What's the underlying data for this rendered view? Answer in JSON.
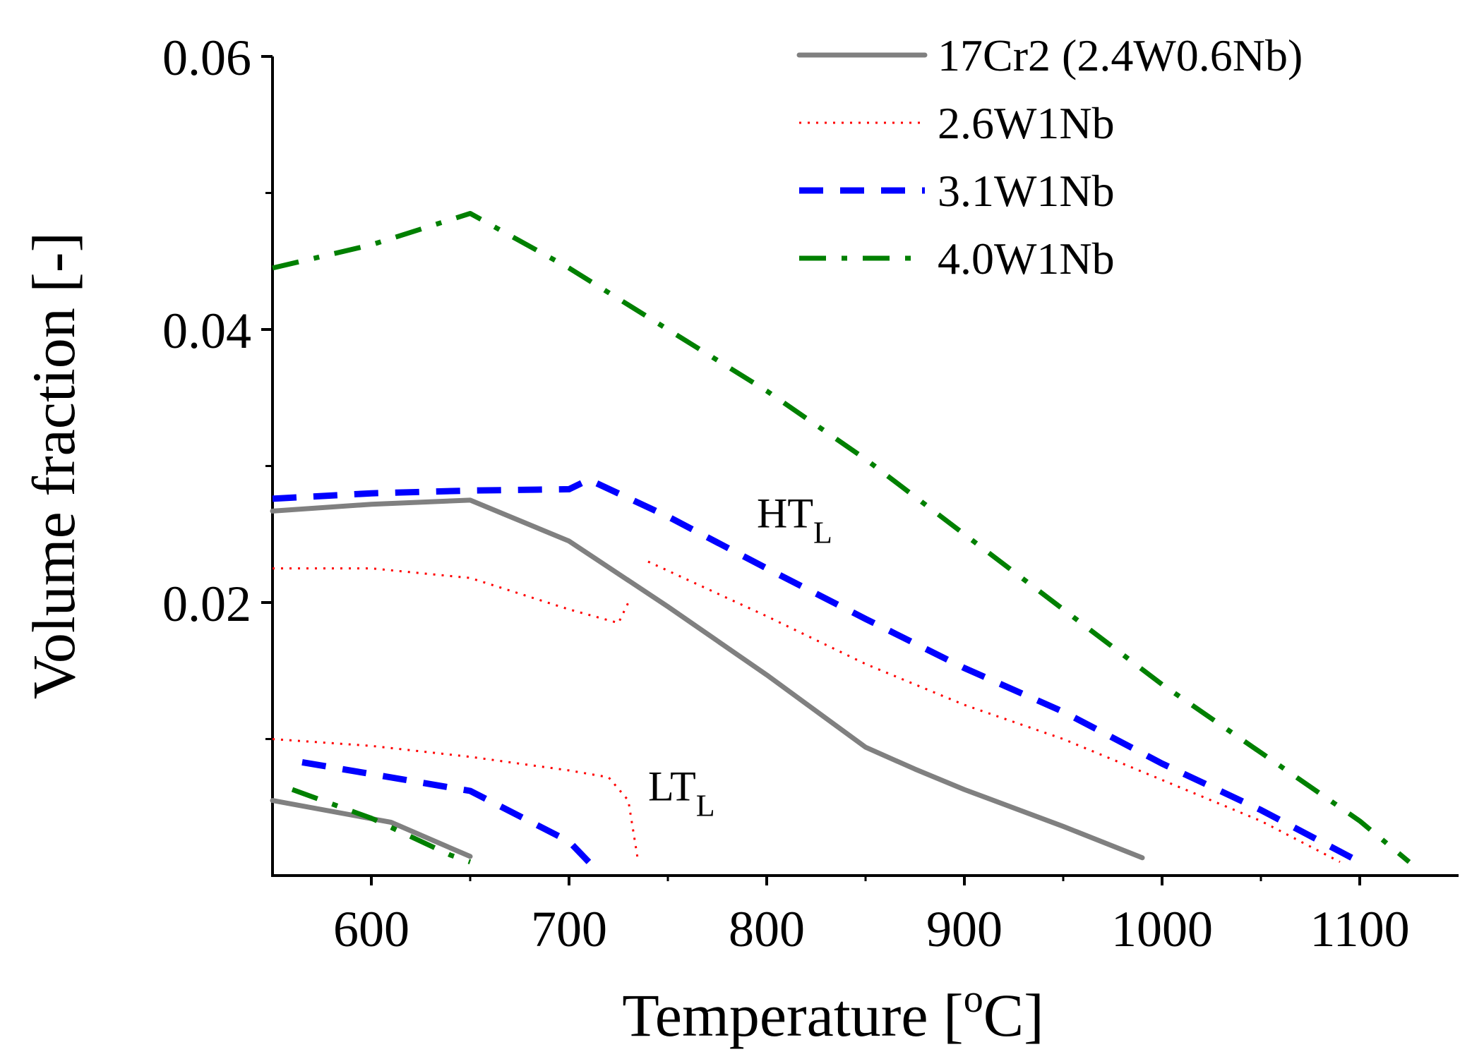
{
  "chart_data": {
    "type": "line",
    "xlabel": "Temperature [°C]",
    "xlabel_parts": {
      "pre": "Temperature [",
      "sup": "o",
      "post": "C]"
    },
    "ylabel": "Volume fraction [-]",
    "xlim": [
      550,
      1150
    ],
    "ylim": [
      0,
      0.06
    ],
    "x_ticks": [
      600,
      700,
      800,
      900,
      1000,
      1100
    ],
    "x_tick_labels": [
      "600",
      "700",
      "800",
      "900",
      "1000",
      "1100"
    ],
    "y_ticks": [
      0.02,
      0.04,
      0.06
    ],
    "y_tick_labels": [
      "0.02",
      "0.04",
      "0.06"
    ],
    "y_minor_ticks": [
      0.01,
      0.03,
      0.05
    ],
    "x_minor_ticks": [
      650,
      750,
      850,
      950,
      1050
    ],
    "grid": false,
    "legend_position": "top-right",
    "series": [
      {
        "name": "17Cr2 (2.4W0.6Nb)",
        "color": "#808080",
        "style": "solid",
        "segments": [
          {
            "group": "HT",
            "x": [
              550,
              600,
              650,
              700,
              750,
              800,
              850,
              875,
              900,
              950,
              990
            ],
            "y": [
              0.0267,
              0.0272,
              0.0275,
              0.0245,
              0.0197,
              0.0147,
              0.0094,
              0.0078,
              0.0063,
              0.0036,
              0.0013
            ]
          },
          {
            "group": "LT",
            "x": [
              550,
              610,
              650
            ],
            "y": [
              0.0055,
              0.0039,
              0.0014
            ]
          }
        ]
      },
      {
        "name": "2.6W1Nb",
        "color": "#ff0000",
        "style": "dotted",
        "segments": [
          {
            "group": "HT",
            "x": [
              550,
              600,
              650,
              700,
              725,
              730
            ],
            "y": [
              0.0225,
              0.0225,
              0.0218,
              0.0195,
              0.0185,
              0.02
            ]
          },
          {
            "group": "HT",
            "x": [
              740,
              800,
              850,
              900,
              950,
              1000,
              1050,
              1090
            ],
            "y": [
              0.023,
              0.019,
              0.0155,
              0.0125,
              0.01,
              0.007,
              0.004,
              0.001
            ]
          },
          {
            "group": "LT",
            "x": [
              550,
              600,
              650,
              700,
              720,
              730,
              735
            ],
            "y": [
              0.01,
              0.0095,
              0.0087,
              0.0077,
              0.0072,
              0.0055,
              0.001
            ]
          }
        ]
      },
      {
        "name": "3.1W1Nb",
        "color": "#0000ff",
        "style": "dashed",
        "segments": [
          {
            "group": "HT",
            "x": [
              550,
              600,
              650,
              700,
              710,
              750,
              800,
              850,
              900,
              950,
              1000,
              1050,
              1100
            ],
            "y": [
              0.0276,
              0.028,
              0.0282,
              0.0283,
              0.029,
              0.0263,
              0.0225,
              0.0188,
              0.0152,
              0.012,
              0.0082,
              0.0048,
              0.001
            ]
          },
          {
            "group": "LT",
            "x": [
              565,
              650,
              700,
              710
            ],
            "y": [
              0.0083,
              0.0062,
              0.0025,
              0.001
            ]
          }
        ]
      },
      {
        "name": "4.0W1Nb",
        "color": "#008000",
        "style": "dashdot",
        "segments": [
          {
            "group": "HT",
            "x": [
              550,
              600,
              650,
              700,
              750,
              800,
              850,
              900,
              950,
              1000,
              1050,
              1100,
              1125
            ],
            "y": [
              0.0445,
              0.0462,
              0.0485,
              0.0445,
              0.04,
              0.0355,
              0.0305,
              0.025,
              0.0195,
              0.014,
              0.009,
              0.004,
              0.001
            ]
          },
          {
            "group": "LT",
            "x": [
              560,
              600,
              640,
              650
            ],
            "y": [
              0.0063,
              0.0042,
              0.0015,
              0.001
            ]
          }
        ]
      }
    ],
    "annotations": [
      {
        "id": "ht",
        "base": "HT",
        "sub": "L",
        "x": 795,
        "y": 0.0255
      },
      {
        "id": "lt",
        "base": "LT",
        "sub": "L",
        "x": 740,
        "y": 0.0055
      }
    ]
  }
}
